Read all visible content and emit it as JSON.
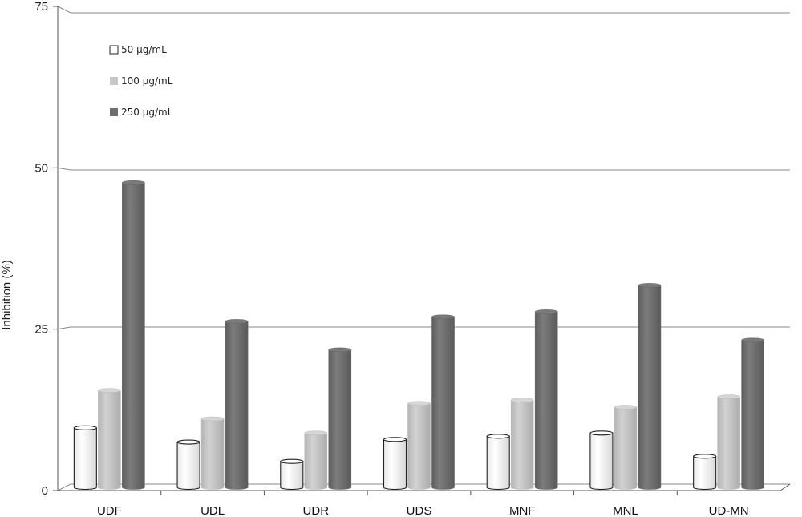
{
  "chart_data": {
    "type": "bar",
    "title": "",
    "xlabel": "",
    "ylabel": "Inhibition (%)",
    "ylim": [
      0,
      75
    ],
    "yticks": [
      "0",
      "25",
      "50",
      "75"
    ],
    "grid": true,
    "legend_position": "top-left",
    "categories": [
      "UDF",
      "UDL",
      "UDR",
      "UDS",
      "MNF",
      "MNL",
      "UD-MN"
    ],
    "series": [
      {
        "name": "50 µg/mL",
        "color": "#ffffff",
        "values": [
          10.2,
          8.0,
          5.0,
          8.4,
          8.9,
          9.4,
          5.8
        ]
      },
      {
        "name": "100 µg/mL",
        "color": "#c4c4c4",
        "values": [
          16.0,
          11.6,
          9.4,
          14.0,
          14.5,
          13.4,
          15.0
        ]
      },
      {
        "name": "250 µg/mL",
        "color": "#707070",
        "values": [
          48.2,
          26.7,
          22.3,
          27.4,
          28.2,
          32.3,
          23.8
        ]
      }
    ]
  }
}
